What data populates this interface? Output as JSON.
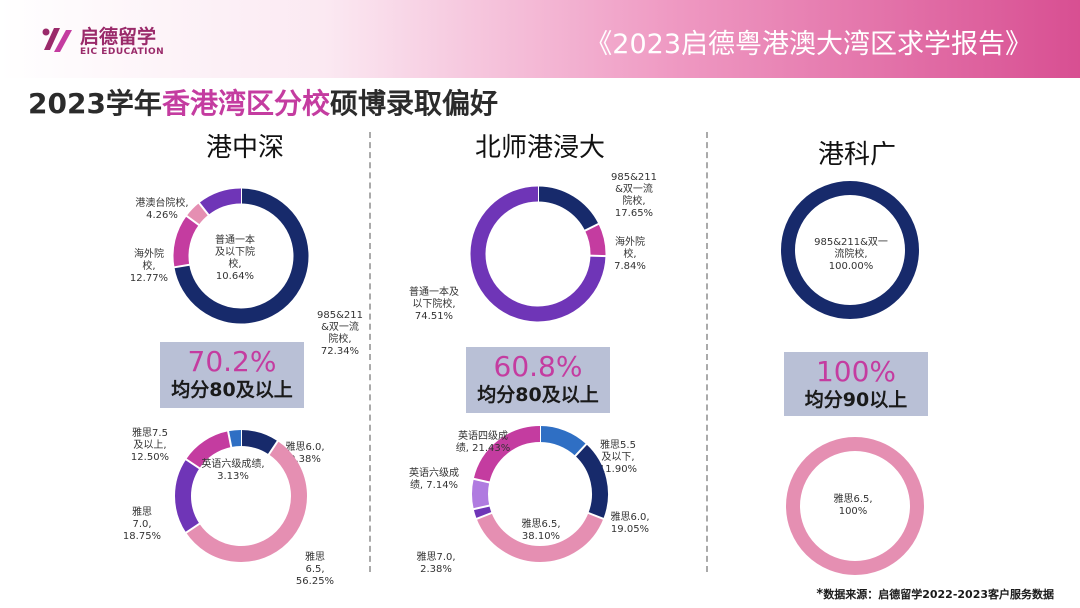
{
  "header": {
    "logo_text": "启德留学",
    "logo_subtext": "EIC EDUCATION",
    "report_title": "《2023启德粤港澳大湾区求学报告》"
  },
  "page": {
    "title_prefix": "2023学年",
    "title_highlight": "香港湾区分校",
    "title_suffix": "硕博录取偏好"
  },
  "colors": {
    "navy": "#172a6b",
    "magenta": "#c43ca0",
    "purple": "#6f35b7",
    "pink": "#e58fb2",
    "pink_light": "#f3a9c1",
    "blue": "#2f6fc4",
    "highlight": "#c43ca0"
  },
  "columns": [
    {
      "title": "港中深",
      "stat_value": "70.2%",
      "stat_label": "均分80及以上"
    },
    {
      "title": "北师港浸大",
      "stat_value": "60.8%",
      "stat_label": "均分80及以上"
    },
    {
      "title": "港科广",
      "stat_value": "100%",
      "stat_label": "均分90以上"
    }
  ],
  "chart_data": [
    {
      "type": "pie",
      "slices": [
        {
          "label": "985&211\n&双一流\n院校,\n72.34%",
          "value": 72.34,
          "color": "#172a6b"
        },
        {
          "label": "海外院\n校,\n12.77%",
          "value": 12.77,
          "color": "#c43ca0"
        },
        {
          "label": "港澳台院校,\n4.26%",
          "value": 4.26,
          "color": "#e58fb2"
        },
        {
          "label": "普通一本\n及以下院\n校,\n10.64%",
          "value": 10.64,
          "color": "#6f35b7"
        }
      ]
    },
    {
      "type": "pie",
      "slices": [
        {
          "label": "985&211\n&双一流\n院校,\n17.65%",
          "value": 17.65,
          "color": "#172a6b"
        },
        {
          "label": "海外院\n校,\n7.84%",
          "value": 7.84,
          "color": "#c43ca0"
        },
        {
          "label": "普通一本及\n以下院校,\n74.51%",
          "value": 74.51,
          "color": "#6f35b7"
        }
      ]
    },
    {
      "type": "pie",
      "slices": [
        {
          "label": "985&211&双一\n流院校,\n100.00%",
          "value": 100.0,
          "color": "#172a6b"
        }
      ]
    },
    {
      "type": "pie",
      "slices": [
        {
          "label": "雅思6.0,\n9.38%",
          "value": 9.38,
          "color": "#172a6b"
        },
        {
          "label": "雅思\n6.5,\n56.25%",
          "value": 56.25,
          "color": "#e58fb2"
        },
        {
          "label": "雅思\n7.0,\n18.75%",
          "value": 18.75,
          "color": "#6f35b7"
        },
        {
          "label": "雅思7.5\n及以上,\n12.50%",
          "value": 12.5,
          "color": "#c43ca0"
        },
        {
          "label": "英语六级成绩,\n3.13%",
          "value": 3.13,
          "color": "#2f6fc4"
        }
      ]
    },
    {
      "type": "pie",
      "slices": [
        {
          "label": "雅思5.5\n及以下,\n11.90%",
          "value": 11.9,
          "color": "#2f6fc4"
        },
        {
          "label": "雅思6.0,\n19.05%",
          "value": 19.05,
          "color": "#172a6b"
        },
        {
          "label": "雅思6.5,\n38.10%",
          "value": 38.1,
          "color": "#e58fb2"
        },
        {
          "label": "雅思7.0,\n2.38%",
          "value": 2.38,
          "color": "#6f35b7"
        },
        {
          "label": "英语六级成\n绩, 7.14%",
          "value": 7.14,
          "color": "#b07be0"
        },
        {
          "label": "英语四级成\n绩, 21.43%",
          "value": 21.43,
          "color": "#c43ca0"
        }
      ]
    },
    {
      "type": "pie",
      "slices": [
        {
          "label": "雅思6.5,\n100%",
          "value": 100,
          "color": "#e58fb2"
        }
      ]
    }
  ],
  "footer": {
    "source_star": "*",
    "source": "数据来源：启德留学2022-2023客户服务数据"
  }
}
